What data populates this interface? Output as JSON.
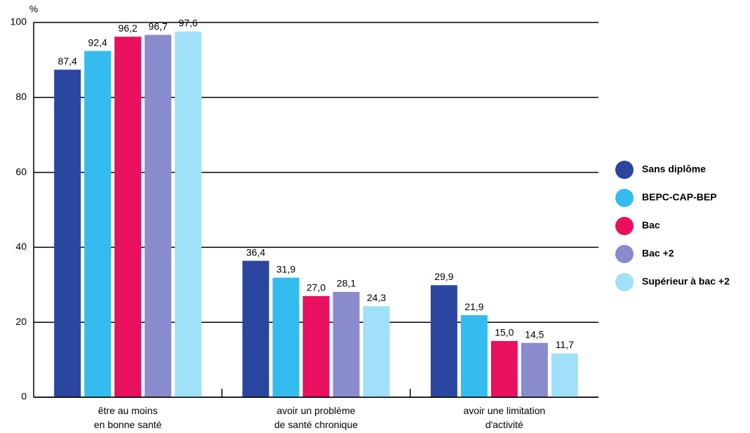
{
  "chart_data": {
    "type": "bar",
    "y_label": "%",
    "categories": [
      "être au moins\nen bonne santé",
      "avoir un problème\nde santé chronique",
      "avoir une limitation\nd'activité"
    ],
    "series": [
      {
        "name": "Sans diplôme",
        "color": "#2a46a0",
        "values": [
          87.4,
          36.4,
          29.9
        ],
        "value_labels": [
          "87,4",
          "36,4",
          "29,9"
        ]
      },
      {
        "name": "BEPC-CAP-BEP",
        "color": "#34bcee",
        "values": [
          92.4,
          31.9,
          21.9
        ],
        "value_labels": [
          "92,4",
          "31,9",
          "21,9"
        ]
      },
      {
        "name": "Bac",
        "color": "#e8105f",
        "values": [
          96.2,
          27.0,
          15.0
        ],
        "value_labels": [
          "96,2",
          "27,0",
          "15,0"
        ]
      },
      {
        "name": "Bac +2",
        "color": "#8a8bcc",
        "values": [
          96.7,
          28.1,
          14.5
        ],
        "value_labels": [
          "96,7",
          "28,1",
          "14,5"
        ]
      },
      {
        "name": "Supérieur à bac +2",
        "color": "#a0e0f8",
        "values": [
          97.6,
          24.3,
          11.7
        ],
        "value_labels": [
          "97,6",
          "24,3",
          "11,7"
        ]
      }
    ],
    "ylim": [
      0,
      100
    ],
    "yticks": [
      0,
      20,
      40,
      60,
      80,
      100
    ],
    "grid": true,
    "legend": "right"
  }
}
